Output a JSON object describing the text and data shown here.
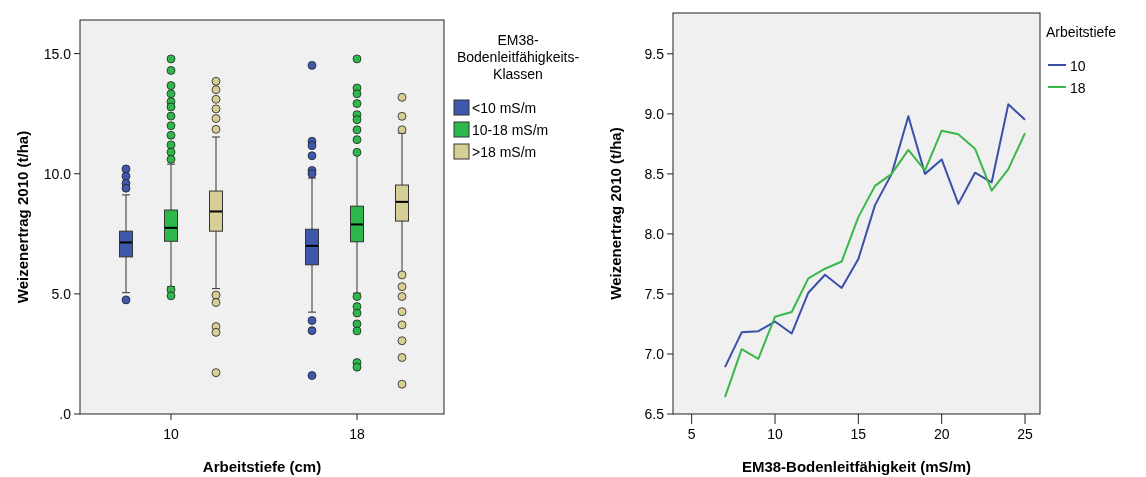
{
  "chart_data": [
    {
      "type": "box",
      "categories": [
        "10",
        "18"
      ],
      "xlabel": "Arbeitstiefe (cm)",
      "ylabel": "Weizenertrag 2010 (t/ha)",
      "legend_title": "EM38-Bodenleitfähigkeits-Klassen",
      "legend": "right",
      "ylim": [
        0,
        16.4
      ],
      "yticks": [
        {
          "value": 0,
          "label": ".0"
        },
        {
          "value": 5,
          "label": "5.0"
        },
        {
          "value": 10,
          "label": "10.0"
        },
        {
          "value": 15,
          "label": "15.0"
        }
      ],
      "series": [
        {
          "name": "<10 mS/m",
          "color": "#3e58ac",
          "boxes": [
            {
              "low": 5.05,
              "q1": 6.54,
              "median": 7.14,
              "q3": 7.61,
              "high": 9.12,
              "outliers": [
                10.2,
                9.9,
                9.6,
                9.4,
                4.75
              ]
            },
            {
              "low": 4.24,
              "q1": 6.21,
              "median": 7.0,
              "q3": 7.69,
              "high": 9.82,
              "outliers": [
                14.51,
                11.35,
                11.17,
                10.75,
                10.14,
                10.0,
                3.89,
                3.47,
                1.6
              ]
            }
          ]
        },
        {
          "name": "10-18 mS/m",
          "color": "#2db84b",
          "boxes": [
            {
              "low": 5.3,
              "q1": 7.19,
              "median": 7.75,
              "q3": 8.49,
              "high": 10.4,
              "outliers": [
                14.78,
                14.3,
                13.67,
                13.33,
                13.0,
                12.78,
                12.4,
                12.0,
                11.6,
                11.2,
                10.9,
                10.6,
                5.17,
                4.92
              ]
            },
            {
              "low": 5.03,
              "q1": 7.17,
              "median": 7.89,
              "q3": 8.65,
              "high": 10.86,
              "outliers": [
                14.78,
                13.57,
                13.33,
                12.92,
                12.46,
                12.25,
                11.83,
                11.42,
                10.89,
                4.89,
                4.47,
                4.2,
                3.75,
                3.46,
                2.14,
                1.95
              ]
            }
          ]
        },
        {
          "name": ">18 mS/m",
          "color": "#d5ce95",
          "boxes": [
            {
              "low": 5.22,
              "q1": 7.61,
              "median": 8.43,
              "q3": 9.28,
              "high": 11.53,
              "outliers": [
                13.85,
                13.5,
                13.1,
                12.7,
                12.3,
                11.85,
                4.95,
                4.64,
                3.64,
                3.4,
                1.72
              ]
            },
            {
              "low": 5.86,
              "q1": 8.03,
              "median": 8.83,
              "q3": 9.53,
              "high": 11.69,
              "outliers": [
                13.18,
                12.39,
                11.83,
                5.79,
                5.3,
                4.89,
                4.26,
                3.71,
                3.05,
                2.35,
                1.24
              ]
            }
          ]
        }
      ]
    },
    {
      "type": "line",
      "xlabel": "EM38-Bodenleitfähigkeit (mS/m)",
      "ylabel": "Weizenertrag 2010 (t/ha)",
      "legend_title": "Arbeitstiefe",
      "legend": "right",
      "marker": "none",
      "x": [
        7,
        8,
        9,
        10,
        11,
        12,
        13,
        14,
        15,
        16,
        17,
        18,
        19,
        20,
        21,
        22,
        23,
        24,
        25
      ],
      "xlim": [
        3.88,
        25.9
      ],
      "xticks": [
        5,
        10,
        15,
        20,
        25
      ],
      "ylim": [
        6.5,
        9.84
      ],
      "yticks": [
        {
          "value": 6.5,
          "label": "6.5"
        },
        {
          "value": 7,
          "label": "7.0"
        },
        {
          "value": 7.5,
          "label": "7.5"
        },
        {
          "value": 8,
          "label": "8.0"
        },
        {
          "value": 8.5,
          "label": "8.5"
        },
        {
          "value": 9,
          "label": "9.0"
        },
        {
          "value": 9.5,
          "label": "9.5"
        }
      ],
      "series": [
        {
          "name": "10",
          "color": "#3b4fa8",
          "values": [
            6.89,
            7.18,
            7.19,
            7.27,
            7.17,
            7.51,
            7.66,
            7.55,
            7.79,
            8.24,
            8.5,
            8.98,
            8.5,
            8.62,
            8.25,
            8.51,
            8.43,
            9.08,
            8.95
          ]
        },
        {
          "name": "18",
          "color": "#38b84a",
          "values": [
            6.64,
            7.04,
            6.96,
            7.31,
            7.35,
            7.63,
            7.71,
            7.77,
            8.14,
            8.4,
            8.5,
            8.7,
            8.53,
            8.86,
            8.83,
            8.71,
            8.36,
            8.54,
            8.84
          ]
        }
      ]
    }
  ]
}
